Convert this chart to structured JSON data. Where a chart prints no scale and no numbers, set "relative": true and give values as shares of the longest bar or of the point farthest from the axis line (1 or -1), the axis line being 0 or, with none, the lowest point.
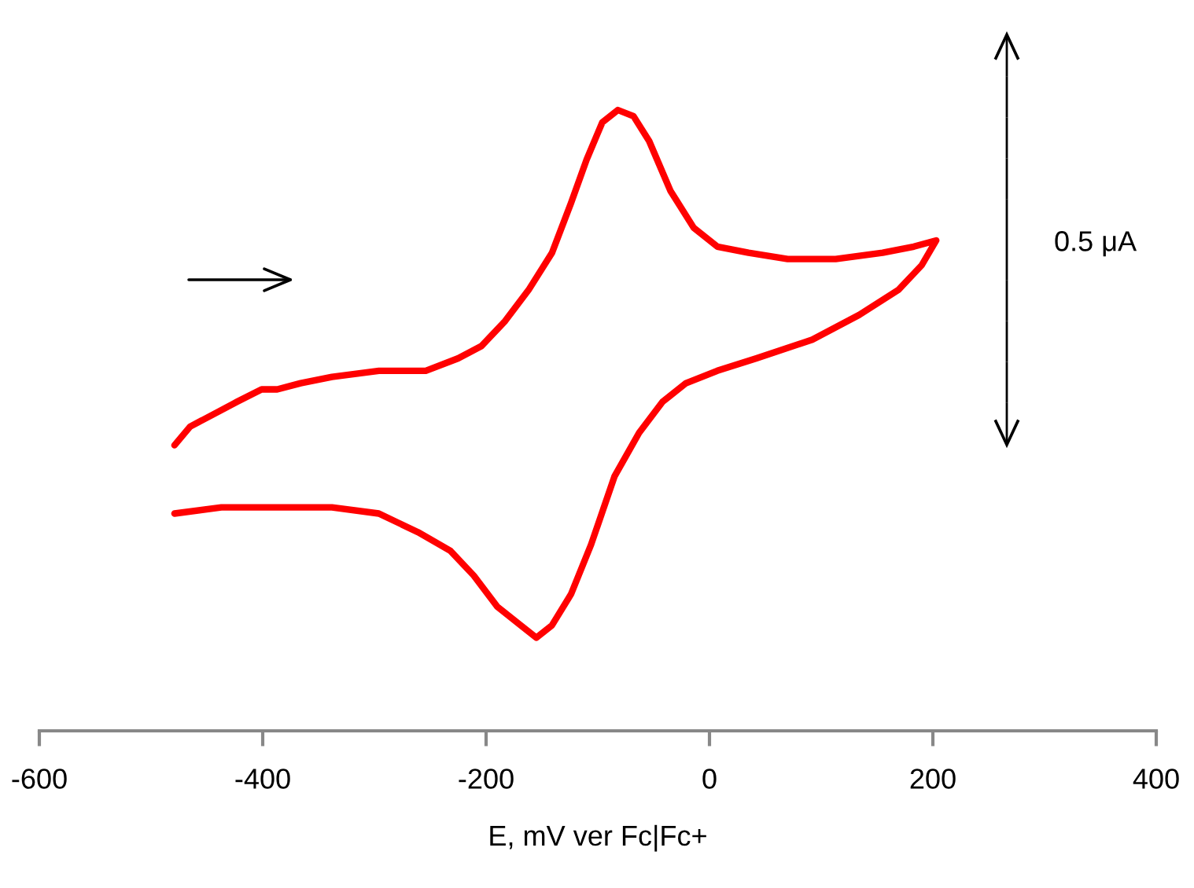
{
  "chart_data": {
    "type": "line",
    "relative": true,
    "xlabel": "E, mV ver Fc|Fc+",
    "xlim": [
      -600,
      400
    ],
    "xticks": [
      -600,
      -400,
      -200,
      0,
      200,
      400
    ],
    "annotations": [
      "0.5 μA"
    ],
    "series": [
      {
        "color": "#ff0000",
        "x": [
          -479,
          -465,
          -444,
          -423,
          -401,
          -387,
          -366,
          -338,
          -296,
          -254,
          -225,
          -204,
          -183,
          -162,
          -141,
          -124,
          -110,
          -96,
          -82,
          -68,
          -54,
          -35,
          -14,
          7,
          35,
          70,
          113,
          155,
          183,
          203,
          190,
          169,
          134,
          92,
          42,
          7,
          -21,
          -42,
          -63,
          -85,
          -106,
          -124,
          -141,
          -155,
          -169,
          -190,
          -211,
          -232,
          -261,
          -296,
          -338,
          -387,
          -437,
          -479
        ],
        "values": [
          0.46,
          0.49,
          0.51,
          0.53,
          0.55,
          0.55,
          0.56,
          0.57,
          0.58,
          0.58,
          0.6,
          0.62,
          0.66,
          0.71,
          0.77,
          0.85,
          0.92,
          0.98,
          1,
          0.99,
          0.95,
          0.87,
          0.81,
          0.78,
          0.77,
          0.76,
          0.76,
          0.77,
          0.78,
          0.79,
          0.75,
          0.71,
          0.67,
          0.63,
          0.6,
          0.58,
          0.56,
          0.53,
          0.48,
          0.41,
          0.3,
          0.22,
          0.17,
          0.15,
          0.17,
          0.2,
          0.25,
          0.29,
          0.32,
          0.35,
          0.36,
          0.36,
          0.36,
          0.35
        ]
      }
    ]
  }
}
